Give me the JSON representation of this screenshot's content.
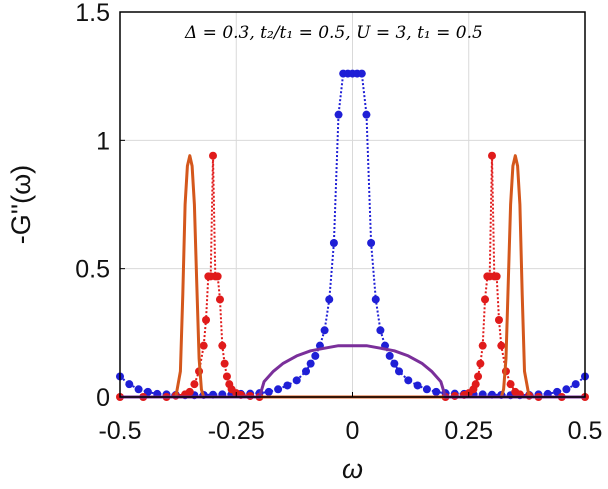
{
  "chart_data": {
    "type": "line",
    "title": "",
    "annotation": "Δ = 0.3, t₂/t₁ = 0.5, U = 3, t₁ = 0.5",
    "xlabel": "ω",
    "ylabel": "-G''(ω)",
    "xlim": [
      -0.5,
      0.5
    ],
    "ylim": [
      0,
      1.5
    ],
    "xticks": [
      -0.5,
      -0.25,
      0,
      0.25,
      0.5
    ],
    "xtick_labels": [
      "-0.5",
      "-0.25",
      "0",
      "0.25",
      "0.5"
    ],
    "yticks": [
      0,
      0.5,
      1,
      1.5
    ],
    "ytick_labels": [
      "0",
      "0.5",
      "1",
      "1.5"
    ],
    "grid": true,
    "colors": {
      "blue": "#1f1fd6",
      "red": "#e01b1b",
      "orange": "#d4571c",
      "purple": "#7a2f9a"
    },
    "series": [
      {
        "color": "blue",
        "style": "dotted-markers",
        "x": [
          -0.5,
          -0.48,
          -0.46,
          -0.44,
          -0.42,
          -0.4,
          -0.38,
          -0.36,
          -0.34,
          -0.32,
          -0.3,
          -0.28,
          -0.26,
          -0.24,
          -0.22,
          -0.2,
          -0.18,
          -0.16,
          -0.14,
          -0.12,
          -0.1,
          -0.09,
          -0.08,
          -0.07,
          -0.06,
          -0.05,
          -0.04,
          -0.03,
          -0.02,
          -0.01,
          0.0,
          0.01,
          0.02,
          0.03,
          0.04,
          0.05,
          0.06,
          0.07,
          0.08,
          0.09,
          0.1,
          0.12,
          0.14,
          0.16,
          0.18,
          0.2,
          0.22,
          0.24,
          0.26,
          0.28,
          0.3,
          0.32,
          0.34,
          0.36,
          0.38,
          0.4,
          0.42,
          0.44,
          0.46,
          0.48,
          0.5
        ],
        "y": [
          0.08,
          0.05,
          0.03,
          0.02,
          0.012,
          0.01,
          0.008,
          0.007,
          0.007,
          0.008,
          0.009,
          0.01,
          0.011,
          0.012,
          0.013,
          0.015,
          0.02,
          0.03,
          0.045,
          0.065,
          0.1,
          0.13,
          0.16,
          0.2,
          0.26,
          0.38,
          0.6,
          1.1,
          1.26,
          1.26,
          1.26,
          1.26,
          1.26,
          1.1,
          0.6,
          0.38,
          0.26,
          0.2,
          0.16,
          0.13,
          0.1,
          0.065,
          0.045,
          0.03,
          0.02,
          0.015,
          0.013,
          0.012,
          0.011,
          0.01,
          0.009,
          0.008,
          0.007,
          0.007,
          0.008,
          0.01,
          0.012,
          0.02,
          0.03,
          0.05,
          0.08
        ]
      },
      {
        "color": "red",
        "style": "dotted-markers",
        "x": [
          -0.5,
          -0.45,
          -0.4,
          -0.38,
          -0.36,
          -0.35,
          -0.34,
          -0.33,
          -0.32,
          -0.315,
          -0.31,
          -0.305,
          -0.3,
          -0.295,
          -0.29,
          -0.285,
          -0.28,
          -0.275,
          -0.27,
          -0.265,
          -0.26,
          -0.25,
          -0.24,
          -0.22,
          -0.2,
          0.2,
          0.22,
          0.24,
          0.25,
          0.26,
          0.265,
          0.27,
          0.275,
          0.28,
          0.285,
          0.29,
          0.295,
          0.3,
          0.305,
          0.31,
          0.315,
          0.32,
          0.33,
          0.34,
          0.35,
          0.36,
          0.38,
          0.4,
          0.45,
          0.5
        ],
        "y": [
          0.0,
          0.0,
          0.0,
          0.005,
          0.01,
          0.02,
          0.05,
          0.1,
          0.2,
          0.3,
          0.47,
          0.47,
          0.94,
          0.47,
          0.47,
          0.38,
          0.2,
          0.13,
          0.08,
          0.05,
          0.03,
          0.015,
          0.008,
          0.004,
          0.0,
          0.0,
          0.004,
          0.008,
          0.015,
          0.03,
          0.05,
          0.08,
          0.13,
          0.2,
          0.38,
          0.47,
          0.47,
          0.94,
          0.47,
          0.47,
          0.3,
          0.2,
          0.1,
          0.05,
          0.02,
          0.01,
          0.005,
          0.0,
          0.0,
          0.0
        ]
      },
      {
        "color": "orange",
        "style": "solid",
        "x": [
          -0.5,
          -0.38,
          -0.37,
          -0.365,
          -0.36,
          -0.355,
          -0.35,
          -0.345,
          -0.34,
          -0.335,
          -0.33,
          -0.325,
          -0.32,
          -0.31,
          -0.3,
          0.3,
          0.31,
          0.32,
          0.325,
          0.33,
          0.335,
          0.34,
          0.345,
          0.35,
          0.355,
          0.36,
          0.365,
          0.37,
          0.38,
          0.5
        ],
        "y": [
          0.0,
          0.0,
          0.1,
          0.4,
          0.75,
          0.9,
          0.94,
          0.9,
          0.75,
          0.45,
          0.15,
          0.03,
          0.0,
          0.0,
          0.0,
          0.0,
          0.0,
          0.0,
          0.03,
          0.15,
          0.45,
          0.75,
          0.9,
          0.94,
          0.9,
          0.75,
          0.4,
          0.1,
          0.0,
          0.0
        ]
      },
      {
        "color": "purple",
        "style": "solid",
        "x": [
          -0.5,
          -0.2,
          -0.19,
          -0.17,
          -0.15,
          -0.12,
          -0.09,
          -0.06,
          -0.03,
          0.0,
          0.03,
          0.06,
          0.09,
          0.12,
          0.15,
          0.17,
          0.19,
          0.2,
          0.5
        ],
        "y": [
          0.0,
          0.0,
          0.06,
          0.1,
          0.13,
          0.16,
          0.18,
          0.19,
          0.2,
          0.2,
          0.2,
          0.19,
          0.18,
          0.16,
          0.13,
          0.1,
          0.06,
          0.0,
          0.0
        ]
      }
    ]
  }
}
